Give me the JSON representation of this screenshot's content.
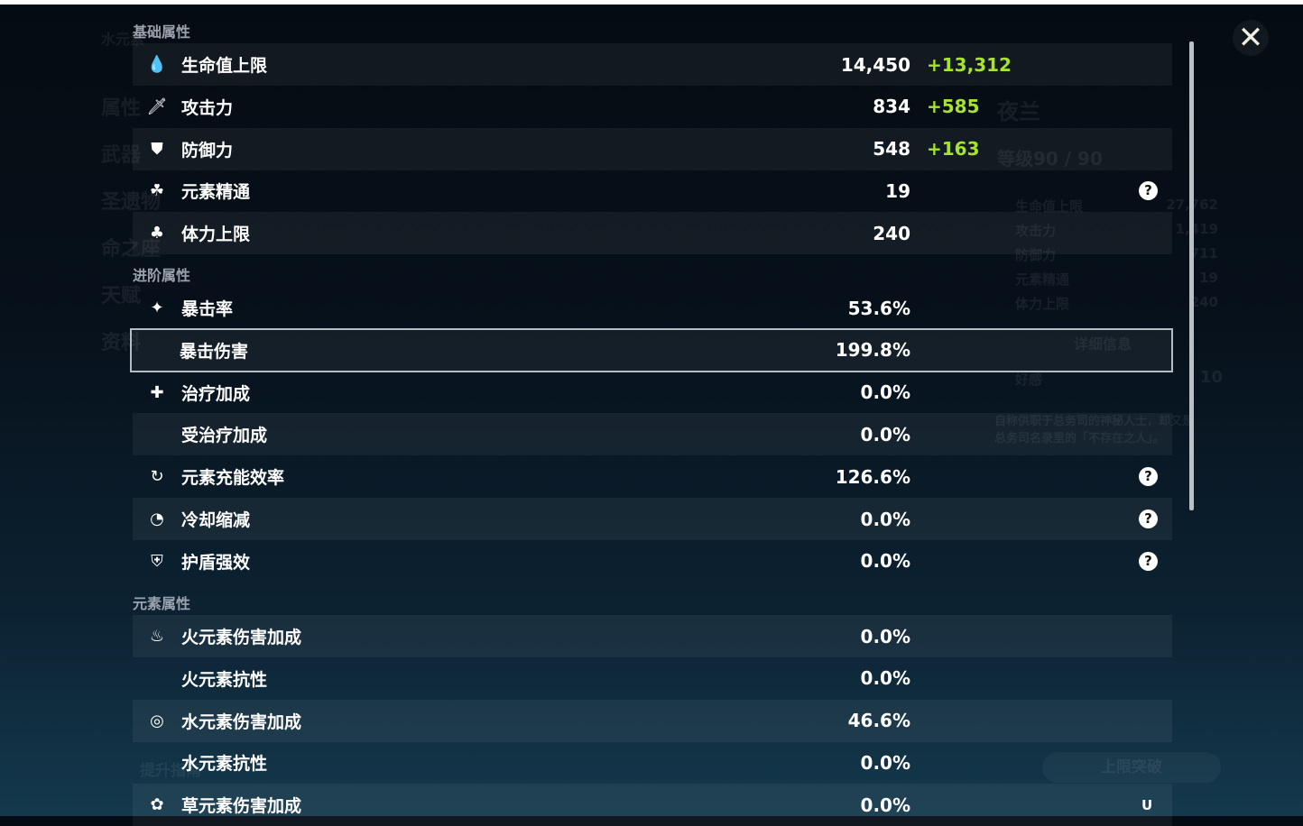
{
  "background": {
    "element_title": "水元素",
    "sidebar": [
      "属性",
      "武器",
      "圣遗物",
      "命之座",
      "天赋",
      "资料"
    ],
    "character_name": "夜兰",
    "level": "等级90 / 90",
    "mini_stats": [
      [
        "生命值上限",
        "27,762"
      ],
      [
        "攻击力",
        "1,419"
      ],
      [
        "防御力",
        "711"
      ],
      [
        "元素精通",
        "19"
      ],
      [
        "体力上限",
        "240"
      ]
    ],
    "details_button": "详细信息",
    "friendship_label": "好感",
    "friendship": "10",
    "description": "自称供职于总务司的神秘人士，却又是总务司名录里的「不存在之人」。",
    "upgrade_button": "提升指南",
    "ascend_button": "上限突破"
  },
  "sections": [
    {
      "title": "基础属性",
      "rows": [
        {
          "icon": "hp-drop-icon",
          "glyph": "💧",
          "label": "生命值上限",
          "value": "14,450",
          "bonus": "+13,312"
        },
        {
          "icon": "sword-icon",
          "glyph": "🗡",
          "label": "攻击力",
          "value": "834",
          "bonus": "+585"
        },
        {
          "icon": "shield-icon",
          "glyph": "⛊",
          "label": "防御力",
          "value": "548",
          "bonus": "+163"
        },
        {
          "icon": "elemental-mastery-icon",
          "glyph": "☘",
          "label": "元素精通",
          "value": "19",
          "help": "?"
        },
        {
          "icon": "stamina-icon",
          "glyph": "♣",
          "label": "体力上限",
          "value": "240"
        }
      ]
    },
    {
      "title": "进阶属性",
      "rows": [
        {
          "icon": "crit-rate-icon",
          "glyph": "✦",
          "label": "暴击率",
          "value": "53.6%"
        },
        {
          "icon": "crit-dmg-icon",
          "glyph": "",
          "label": "暴击伤害",
          "value": "199.8%"
        },
        {
          "icon": "healing-icon",
          "glyph": "✚",
          "label": "治疗加成",
          "value": "0.0%"
        },
        {
          "icon": "",
          "glyph": "",
          "label": "受治疗加成",
          "value": "0.0%"
        },
        {
          "icon": "energy-recharge-icon",
          "glyph": "↻",
          "label": "元素充能效率",
          "value": "126.6%",
          "help": "?"
        },
        {
          "icon": "cooldown-icon",
          "glyph": "◔",
          "label": "冷却缩减",
          "value": "0.0%",
          "help": "?"
        },
        {
          "icon": "shield-strength-icon",
          "glyph": "⛨",
          "label": "护盾强效",
          "value": "0.0%",
          "help": "?"
        }
      ]
    },
    {
      "title": "元素属性",
      "rows": [
        {
          "icon": "pyro-icon",
          "glyph": "♨",
          "label": "火元素伤害加成",
          "value": "0.0%"
        },
        {
          "icon": "",
          "glyph": "",
          "label": "火元素抗性",
          "value": "0.0%"
        },
        {
          "icon": "hydro-icon",
          "glyph": "◎",
          "label": "水元素伤害加成",
          "value": "46.6%"
        },
        {
          "icon": "",
          "glyph": "",
          "label": "水元素抗性",
          "value": "0.0%"
        },
        {
          "icon": "dendro-icon",
          "glyph": "✿",
          "label": "草元素伤害加成",
          "value": "0.0%"
        }
      ]
    }
  ],
  "close": "✕",
  "uid": "U"
}
